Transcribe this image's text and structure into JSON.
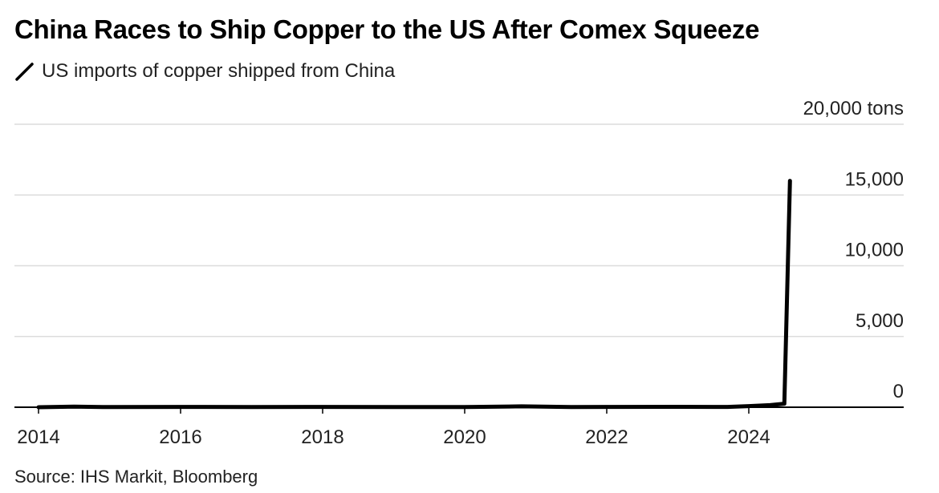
{
  "title": "China Races to Ship Copper to the US After Comex Squeeze",
  "legend_label": "US imports of copper shipped from China",
  "source": "Source: IHS Markit, Bloomberg",
  "colors": {
    "line": "#000000",
    "grid": "#dcdcdc",
    "axis": "#000000",
    "text": "#222222"
  },
  "chart_data": {
    "type": "line",
    "title": "China Races to Ship Copper to the US After Comex Squeeze",
    "series": [
      {
        "name": "US imports of copper shipped from China",
        "x": [
          2014.0,
          2014.5,
          2015.0,
          2016.0,
          2017.0,
          2018.0,
          2019.0,
          2020.0,
          2020.8,
          2021.5,
          2022.0,
          2023.0,
          2023.7,
          2024.0,
          2024.3,
          2024.5,
          2024.58
        ],
        "y": [
          0,
          40,
          10,
          20,
          10,
          20,
          15,
          10,
          60,
          10,
          20,
          30,
          20,
          80,
          150,
          250,
          16000
        ]
      }
    ],
    "x_ticks": [
      2014,
      2016,
      2018,
      2020,
      2022,
      2024
    ],
    "x_tick_labels": [
      "2014",
      "2016",
      "2018",
      "2020",
      "2022",
      "2024"
    ],
    "y_ticks": [
      0,
      5000,
      10000,
      15000,
      20000
    ],
    "y_tick_labels": [
      "0",
      "5,000",
      "10,000",
      "15,000",
      "20,000 tons"
    ],
    "xlim": [
      2013.7,
      2026.0
    ],
    "ylim": [
      0,
      20000
    ],
    "xlabel": "",
    "ylabel": "tons",
    "grid": true,
    "y_axis_position": "right"
  }
}
